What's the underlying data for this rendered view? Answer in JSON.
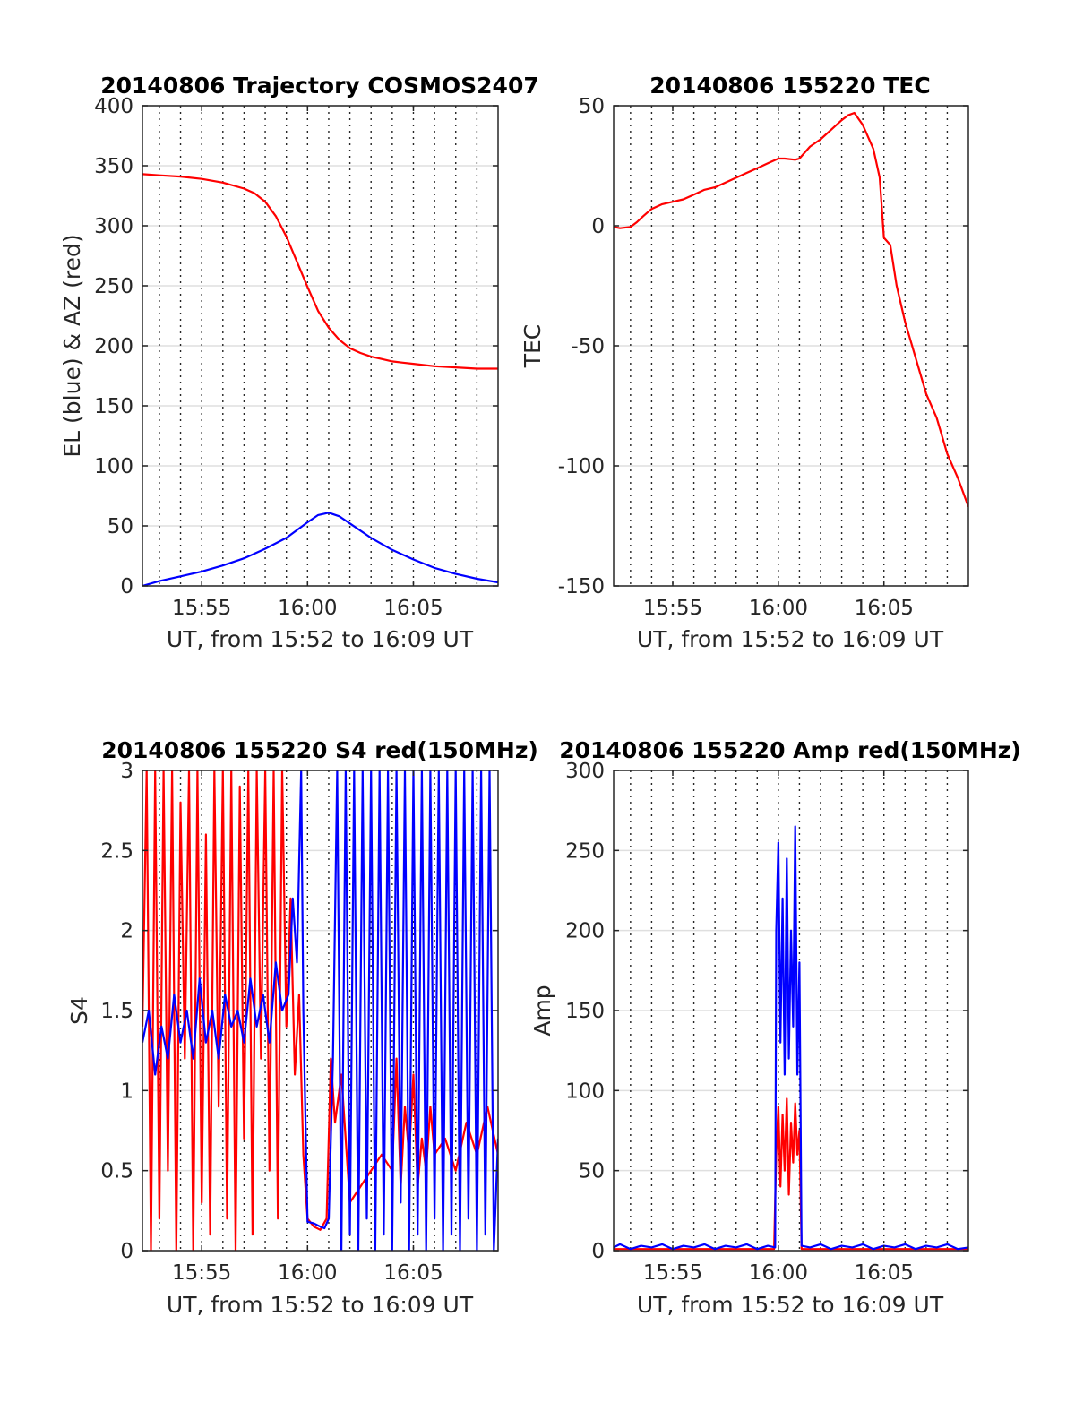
{
  "chart_data": [
    {
      "id": "trajectory",
      "type": "line",
      "title": "20140806 Trajectory COSMOS2407",
      "xlabel": "UT, from 15:52 to 16:09 UT",
      "ylabel": "EL (blue) & AZ (red)",
      "x_unit": "minutes after 15:00 UT",
      "xlim": [
        52.2,
        69.0
      ],
      "ylim": [
        0,
        400
      ],
      "yticks": [
        0,
        50,
        100,
        150,
        200,
        250,
        300,
        350,
        400
      ],
      "xticks": [
        55,
        60,
        65
      ],
      "xticklabels": [
        "15:55",
        "16:00",
        "16:05"
      ],
      "minor_x_grid": [
        53,
        54,
        55,
        56,
        57,
        58,
        59,
        60,
        61,
        62,
        63,
        64,
        65,
        66,
        67,
        68
      ],
      "grid": true,
      "series": [
        {
          "color": "#ff0000",
          "x": [
            52.2,
            53,
            54,
            55,
            56,
            57,
            57.5,
            58,
            58.5,
            59,
            59.5,
            60,
            60.5,
            61,
            61.5,
            62,
            62.5,
            63,
            63.5,
            64,
            64.5,
            65,
            66,
            67,
            68,
            69
          ],
          "y": [
            343,
            342,
            341,
            339,
            336,
            331,
            327,
            320,
            308,
            291,
            270,
            249,
            229,
            215,
            205,
            198,
            194,
            191,
            189,
            187,
            186,
            185,
            183,
            182,
            181,
            181
          ]
        },
        {
          "color": "#0000ff",
          "x": [
            52.2,
            53,
            54,
            55,
            56,
            57,
            58,
            59,
            60,
            60.5,
            61,
            61.5,
            62,
            63,
            64,
            65,
            66,
            67,
            68,
            69
          ],
          "y": [
            0,
            4,
            8,
            12,
            17,
            23,
            31,
            40,
            53,
            59,
            61,
            58,
            52,
            40,
            30,
            22,
            15,
            10,
            6,
            3
          ]
        }
      ]
    },
    {
      "id": "tec",
      "type": "line",
      "title": "20140806 155220 TEC",
      "xlabel": "UT, from 15:52 to 16:09 UT",
      "ylabel": "TEC",
      "x_unit": "minutes after 15:00 UT",
      "xlim": [
        52.2,
        69.0
      ],
      "ylim": [
        -150,
        50
      ],
      "yticks": [
        -150,
        -100,
        -50,
        0,
        50
      ],
      "xticks": [
        55,
        60,
        65
      ],
      "xticklabels": [
        "15:55",
        "16:00",
        "16:05"
      ],
      "minor_x_grid": [
        53,
        54,
        55,
        56,
        57,
        58,
        59,
        60,
        61,
        62,
        63,
        64,
        65,
        66,
        67,
        68
      ],
      "grid": true,
      "series": [
        {
          "color": "#ff0000",
          "x": [
            52.2,
            52.5,
            53,
            53.3,
            53.6,
            54,
            54.5,
            55,
            55.5,
            56,
            56.5,
            57,
            57.5,
            58,
            58.5,
            59,
            59.5,
            60,
            60.3,
            60.8,
            61,
            61.5,
            62,
            62.5,
            63,
            63.3,
            63.6,
            64,
            64.5,
            64.8,
            65,
            65.3,
            65.6,
            66,
            66.5,
            67,
            67.5,
            68,
            68.5,
            69
          ],
          "y": [
            -0.5,
            -1,
            -0.5,
            1.5,
            4,
            7,
            9,
            10,
            11,
            13,
            15,
            16,
            18,
            20,
            22,
            24,
            26,
            28,
            28,
            27.5,
            28,
            33,
            36,
            40,
            44,
            46,
            47,
            42,
            32,
            20,
            -5,
            -8,
            -25,
            -40,
            -55,
            -70,
            -80,
            -95,
            -105,
            -117
          ]
        }
      ]
    },
    {
      "id": "s4",
      "type": "line",
      "title": "20140806 155220 S4 red(150MHz)",
      "xlabel": "UT, from 15:52 to 16:09 UT",
      "ylabel": "S4",
      "x_unit": "minutes after 15:00 UT",
      "xlim": [
        52.2,
        69.0
      ],
      "ylim": [
        0,
        3
      ],
      "yticks": [
        0,
        0.5,
        1,
        1.5,
        2,
        2.5,
        3
      ],
      "xticks": [
        55,
        60,
        65
      ],
      "xticklabels": [
        "15:55",
        "16:00",
        "16:05"
      ],
      "minor_x_grid": [
        53,
        54,
        55,
        56,
        57,
        58,
        59,
        60,
        61,
        62,
        63,
        64,
        65,
        66,
        67,
        68
      ],
      "grid": true,
      "series": [
        {
          "color": "#ff0000",
          "x": [
            52.2,
            52.4,
            52.6,
            52.8,
            53.0,
            53.2,
            53.4,
            53.6,
            53.8,
            54.0,
            54.2,
            54.4,
            54.6,
            54.8,
            55.0,
            55.2,
            55.4,
            55.6,
            55.8,
            56.0,
            56.2,
            56.4,
            56.6,
            56.8,
            57.0,
            57.2,
            57.4,
            57.6,
            57.8,
            58.0,
            58.2,
            58.4,
            58.6,
            58.8,
            59.0,
            59.2,
            59.4,
            59.6,
            59.8,
            60.0,
            60.3,
            60.6,
            60.9,
            61.1,
            61.3,
            61.6,
            62.0,
            62.5,
            63.0,
            63.5,
            64.0,
            64.2,
            64.4,
            64.6,
            64.8,
            65.0,
            65.2,
            65.4,
            65.6,
            65.8,
            66.0,
            66.5,
            67.0,
            67.5,
            68.0,
            68.5,
            69.0
          ],
          "y": [
            1.4,
            3,
            0,
            3,
            0.2,
            3,
            0.5,
            3,
            0,
            2.8,
            1.2,
            3,
            0,
            3,
            0.3,
            2.6,
            0.1,
            3,
            0.9,
            3,
            0.2,
            3,
            0,
            2.9,
            0.7,
            3,
            0.1,
            3,
            1.2,
            3,
            0.5,
            3,
            0.2,
            3,
            1.4,
            2.2,
            1.1,
            1.6,
            0.6,
            0.2,
            0.15,
            0.13,
            0.2,
            1.2,
            0.8,
            1.1,
            0.3,
            0.4,
            0.5,
            0.6,
            0.5,
            1.2,
            0.4,
            0.9,
            0.6,
            1.1,
            0.4,
            0.7,
            0.5,
            0.9,
            0.6,
            0.7,
            0.5,
            0.8,
            0.6,
            0.9,
            0.6
          ]
        },
        {
          "color": "#0000ff",
          "x": [
            52.2,
            52.5,
            52.8,
            53.1,
            53.4,
            53.7,
            54.0,
            54.3,
            54.6,
            54.9,
            55.2,
            55.5,
            55.8,
            56.1,
            56.4,
            56.7,
            57.0,
            57.3,
            57.6,
            57.9,
            58.2,
            58.5,
            58.8,
            59.1,
            59.3,
            59.5,
            59.7,
            59.8,
            60.0,
            60.3,
            60.6,
            60.8,
            61.0,
            61.2,
            61.4,
            61.6,
            61.8,
            62.0,
            62.2,
            62.4,
            62.6,
            62.8,
            63.0,
            63.2,
            63.4,
            63.6,
            63.8,
            64.0,
            64.2,
            64.4,
            64.6,
            64.8,
            65.0,
            65.2,
            65.4,
            65.6,
            65.8,
            66.0,
            66.2,
            66.4,
            66.6,
            66.8,
            67.0,
            67.2,
            67.4,
            67.6,
            67.8,
            68.0,
            68.2,
            68.4,
            68.6,
            68.8,
            69.0
          ],
          "y": [
            1.3,
            1.5,
            1.1,
            1.4,
            1.2,
            1.6,
            1.3,
            1.5,
            1.2,
            1.7,
            1.3,
            1.5,
            1.2,
            1.6,
            1.4,
            1.5,
            1.3,
            1.7,
            1.4,
            1.6,
            1.3,
            1.8,
            1.5,
            1.6,
            2.2,
            1.8,
            3,
            1.5,
            0.18,
            0.17,
            0.15,
            0.14,
            0.2,
            1.2,
            3,
            0,
            3,
            0.1,
            3,
            0,
            3,
            0.2,
            3,
            0,
            3,
            0.1,
            3,
            0,
            3,
            0.3,
            3,
            0,
            3,
            0.1,
            3,
            0,
            3,
            0.2,
            3,
            0,
            3,
            0.1,
            3,
            0,
            3,
            0.2,
            3,
            0,
            3,
            0.1,
            3,
            0,
            0.7
          ]
        }
      ]
    },
    {
      "id": "amp",
      "type": "line",
      "title": "20140806 155220 Amp red(150MHz)",
      "xlabel": "UT, from 15:52 to 16:09 UT",
      "ylabel": "Amp",
      "x_unit": "minutes after 15:00 UT",
      "xlim": [
        52.2,
        69.0
      ],
      "ylim": [
        0,
        300
      ],
      "yticks": [
        0,
        50,
        100,
        150,
        200,
        250,
        300
      ],
      "xticks": [
        55,
        60,
        65
      ],
      "xticklabels": [
        "15:55",
        "16:00",
        "16:05"
      ],
      "minor_x_grid": [
        53,
        54,
        55,
        56,
        57,
        58,
        59,
        60,
        61,
        62,
        63,
        64,
        65,
        66,
        67,
        68
      ],
      "grid": true,
      "series": [
        {
          "color": "#ff0000",
          "x": [
            52.2,
            55,
            58,
            59.8,
            59.9,
            60.0,
            60.1,
            60.2,
            60.3,
            60.4,
            60.5,
            60.6,
            60.7,
            60.8,
            60.9,
            61.0,
            61.1,
            62,
            65,
            69
          ],
          "y": [
            1,
            1,
            1,
            1,
            60,
            90,
            40,
            85,
            50,
            95,
            35,
            80,
            55,
            92,
            60,
            75,
            1,
            1,
            1,
            1
          ]
        },
        {
          "color": "#0000ff",
          "x": [
            52.2,
            52.5,
            53,
            53.5,
            54,
            54.5,
            55,
            55.5,
            56,
            56.5,
            57,
            57.5,
            58,
            58.5,
            59,
            59.5,
            59.85,
            59.9,
            60.0,
            60.1,
            60.2,
            60.3,
            60.4,
            60.5,
            60.6,
            60.7,
            60.8,
            60.9,
            61.0,
            61.1,
            61.5,
            62,
            62.5,
            63,
            63.5,
            64,
            64.5,
            65,
            65.5,
            66,
            66.5,
            67,
            67.5,
            68,
            68.5,
            69
          ],
          "y": [
            2,
            4,
            1,
            3,
            2,
            4,
            1,
            3,
            2,
            4,
            1,
            3,
            2,
            4,
            1,
            3,
            2,
            200,
            255,
            130,
            220,
            110,
            245,
            120,
            200,
            140,
            265,
            110,
            180,
            3,
            2,
            4,
            1,
            3,
            2,
            4,
            1,
            3,
            2,
            4,
            1,
            3,
            2,
            4,
            1,
            2
          ]
        }
      ]
    }
  ]
}
